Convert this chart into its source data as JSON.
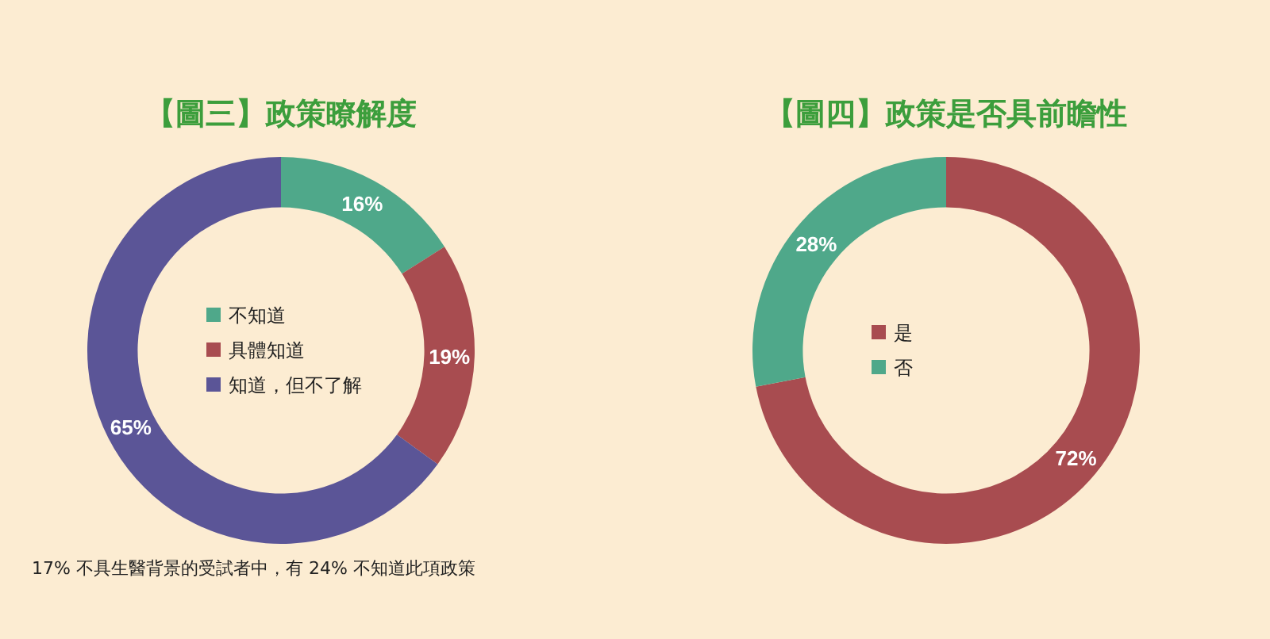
{
  "chart_data": [
    {
      "type": "donut",
      "title": "【圖三】政策瞭解度",
      "categories": [
        "不知道",
        "具體知道",
        "知道，但不了解"
      ],
      "values": [
        16,
        19,
        65
      ],
      "value_labels": [
        "16%",
        "19%",
        "65%"
      ],
      "colors": [
        "#4fa88a",
        "#a84c50",
        "#5b5597"
      ],
      "legend": "center",
      "annotations": [
        "17% 不具生醫背景的受試者中，有 24% 不知道此項政策"
      ]
    },
    {
      "type": "donut",
      "title": "【圖四】政策是否具前瞻性",
      "categories": [
        "是",
        "否"
      ],
      "values": [
        72,
        28
      ],
      "value_labels": [
        "72%",
        "28%"
      ],
      "colors": [
        "#a84c50",
        "#4fa88a"
      ],
      "legend": "center"
    }
  ]
}
